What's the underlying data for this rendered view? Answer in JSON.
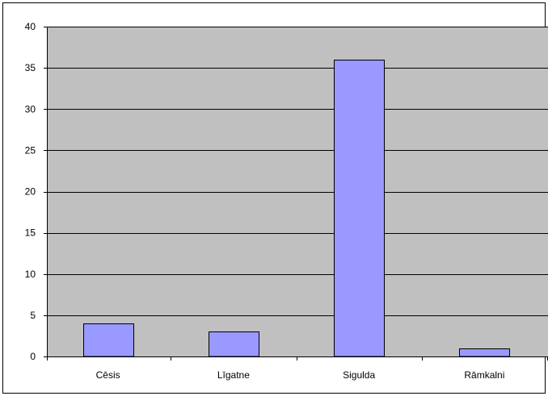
{
  "chart_data": {
    "type": "bar",
    "title": "",
    "xlabel": "",
    "ylabel": "",
    "categories": [
      "Cēsis",
      "Līgatne",
      "Sigulda",
      "Rāmkalni"
    ],
    "values": [
      4,
      3,
      36,
      1
    ],
    "ylim": [
      0,
      40
    ],
    "yticks": [
      0,
      5,
      10,
      15,
      20,
      25,
      30,
      35,
      40
    ],
    "grid": true,
    "legend": "none",
    "colors": {
      "plot_background": "#c0c0c0",
      "bar_fill": "#9999ff",
      "bar_stroke": "#000000",
      "gridline": "#000000"
    }
  }
}
